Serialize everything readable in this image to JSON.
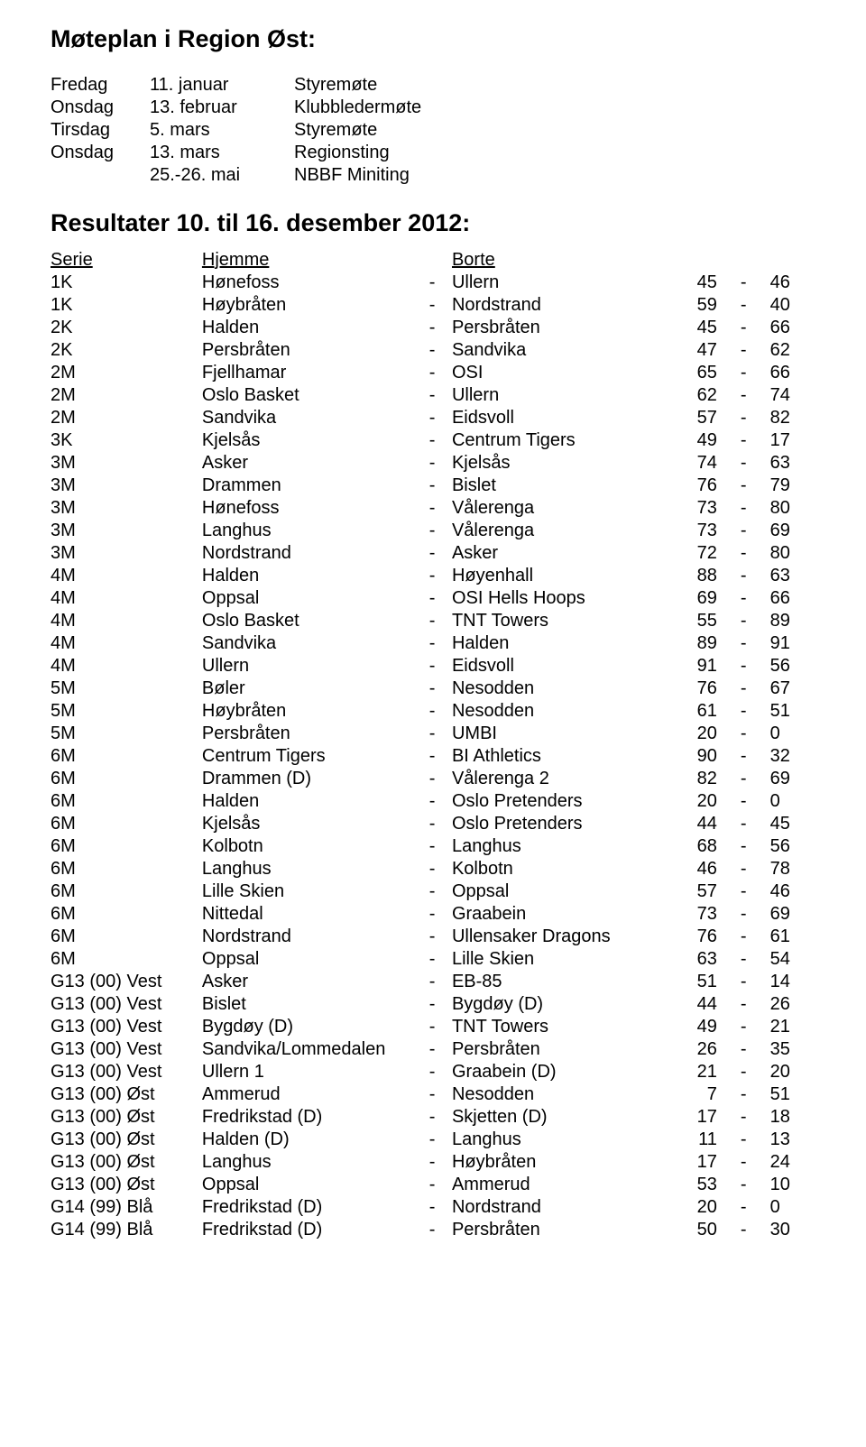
{
  "title": "Møteplan i Region Øst:",
  "meetings": [
    {
      "day": "Fredag",
      "date": "11. januar",
      "event": "Styremøte"
    },
    {
      "day": "Onsdag",
      "date": "13. februar",
      "event": "Klubbledermøte"
    },
    {
      "day": "Tirsdag",
      "date": "5. mars",
      "event": "Styremøte"
    },
    {
      "day": "Onsdag",
      "date": "13. mars",
      "event": "Regionsting"
    },
    {
      "day": "",
      "date": "25.-26. mai",
      "event": "NBBF Miniting"
    }
  ],
  "resultsTitle": "Resultater 10. til 16. desember 2012:",
  "header": {
    "serie": "Serie",
    "home": "Hjemme",
    "away": "Borte"
  },
  "rows": [
    {
      "s": "1K",
      "h": "Hønefoss",
      "a": "Ullern",
      "x": 45,
      "y": 46
    },
    {
      "s": "1K",
      "h": "Høybråten",
      "a": "Nordstrand",
      "x": 59,
      "y": 40
    },
    {
      "s": "2K",
      "h": "Halden",
      "a": "Persbråten",
      "x": 45,
      "y": 66
    },
    {
      "s": "2K",
      "h": "Persbråten",
      "a": "Sandvika",
      "x": 47,
      "y": 62
    },
    {
      "s": "2M",
      "h": "Fjellhamar",
      "a": "OSI",
      "x": 65,
      "y": 66
    },
    {
      "s": "2M",
      "h": "Oslo Basket",
      "a": "Ullern",
      "x": 62,
      "y": 74
    },
    {
      "s": "2M",
      "h": "Sandvika",
      "a": "Eidsvoll",
      "x": 57,
      "y": 82
    },
    {
      "s": "3K",
      "h": "Kjelsås",
      "a": "Centrum Tigers",
      "x": 49,
      "y": 17
    },
    {
      "s": "3M",
      "h": "Asker",
      "a": "Kjelsås",
      "x": 74,
      "y": 63
    },
    {
      "s": "3M",
      "h": "Drammen",
      "a": "Bislet",
      "x": 76,
      "y": 79
    },
    {
      "s": "3M",
      "h": "Hønefoss",
      "a": "Vålerenga",
      "x": 73,
      "y": 80
    },
    {
      "s": "3M",
      "h": "Langhus",
      "a": "Vålerenga",
      "x": 73,
      "y": 69
    },
    {
      "s": "3M",
      "h": "Nordstrand",
      "a": "Asker",
      "x": 72,
      "y": 80
    },
    {
      "s": "4M",
      "h": "Halden",
      "a": "Høyenhall",
      "x": 88,
      "y": 63
    },
    {
      "s": "4M",
      "h": "Oppsal",
      "a": "OSI Hells Hoops",
      "x": 69,
      "y": 66
    },
    {
      "s": "4M",
      "h": "Oslo Basket",
      "a": "TNT Towers",
      "x": 55,
      "y": 89
    },
    {
      "s": "4M",
      "h": "Sandvika",
      "a": "Halden",
      "x": 89,
      "y": 91
    },
    {
      "s": "4M",
      "h": "Ullern",
      "a": "Eidsvoll",
      "x": 91,
      "y": 56
    },
    {
      "s": "5M",
      "h": "Bøler",
      "a": "Nesodden",
      "x": 76,
      "y": 67
    },
    {
      "s": "5M",
      "h": "Høybråten",
      "a": "Nesodden",
      "x": 61,
      "y": 51
    },
    {
      "s": "5M",
      "h": "Persbråten",
      "a": "UMBI",
      "x": 20,
      "y": 0
    },
    {
      "s": "6M",
      "h": "Centrum Tigers",
      "a": "BI Athletics",
      "x": 90,
      "y": 32
    },
    {
      "s": "6M",
      "h": "Drammen (D)",
      "a": "Vålerenga 2",
      "x": 82,
      "y": 69
    },
    {
      "s": "6M",
      "h": "Halden",
      "a": "Oslo Pretenders",
      "x": 20,
      "y": 0
    },
    {
      "s": "6M",
      "h": "Kjelsås",
      "a": "Oslo Pretenders",
      "x": 44,
      "y": 45
    },
    {
      "s": "6M",
      "h": "Kolbotn",
      "a": "Langhus",
      "x": 68,
      "y": 56
    },
    {
      "s": "6M",
      "h": "Langhus",
      "a": "Kolbotn",
      "x": 46,
      "y": 78
    },
    {
      "s": "6M",
      "h": "Lille Skien",
      "a": "Oppsal",
      "x": 57,
      "y": 46
    },
    {
      "s": "6M",
      "h": "Nittedal",
      "a": "Graabein",
      "x": 73,
      "y": 69
    },
    {
      "s": "6M",
      "h": "Nordstrand",
      "a": "Ullensaker Dragons",
      "x": 76,
      "y": 61
    },
    {
      "s": "6M",
      "h": "Oppsal",
      "a": "Lille Skien",
      "x": 63,
      "y": 54
    },
    {
      "s": "G13 (00) Vest",
      "h": "Asker",
      "a": "EB-85",
      "x": 51,
      "y": 14
    },
    {
      "s": "G13 (00) Vest",
      "h": "Bislet",
      "a": "Bygdøy (D)",
      "x": 44,
      "y": 26
    },
    {
      "s": "G13 (00) Vest",
      "h": "Bygdøy (D)",
      "a": "TNT Towers",
      "x": 49,
      "y": 21
    },
    {
      "s": "G13 (00) Vest",
      "h": "Sandvika/Lommedalen",
      "a": "Persbråten",
      "x": 26,
      "y": 35
    },
    {
      "s": "G13 (00) Vest",
      "h": "Ullern 1",
      "a": "Graabein (D)",
      "x": 21,
      "y": 20
    },
    {
      "s": "G13 (00) Øst",
      "h": "Ammerud",
      "a": "Nesodden",
      "x": 7,
      "y": 51
    },
    {
      "s": "G13 (00) Øst",
      "h": "Fredrikstad (D)",
      "a": "Skjetten (D)",
      "x": 17,
      "y": 18
    },
    {
      "s": "G13 (00) Øst",
      "h": "Halden (D)",
      "a": "Langhus",
      "x": 11,
      "y": 13
    },
    {
      "s": "G13 (00) Øst",
      "h": "Langhus",
      "a": "Høybråten",
      "x": 17,
      "y": 24
    },
    {
      "s": "G13 (00) Øst",
      "h": "Oppsal",
      "a": "Ammerud",
      "x": 53,
      "y": 10
    },
    {
      "s": "G14 (99) Blå",
      "h": "Fredrikstad (D)",
      "a": "Nordstrand",
      "x": 20,
      "y": 0
    },
    {
      "s": "G14 (99) Blå",
      "h": "Fredrikstad (D)",
      "a": "Persbråten",
      "x": 50,
      "y": 30
    }
  ]
}
